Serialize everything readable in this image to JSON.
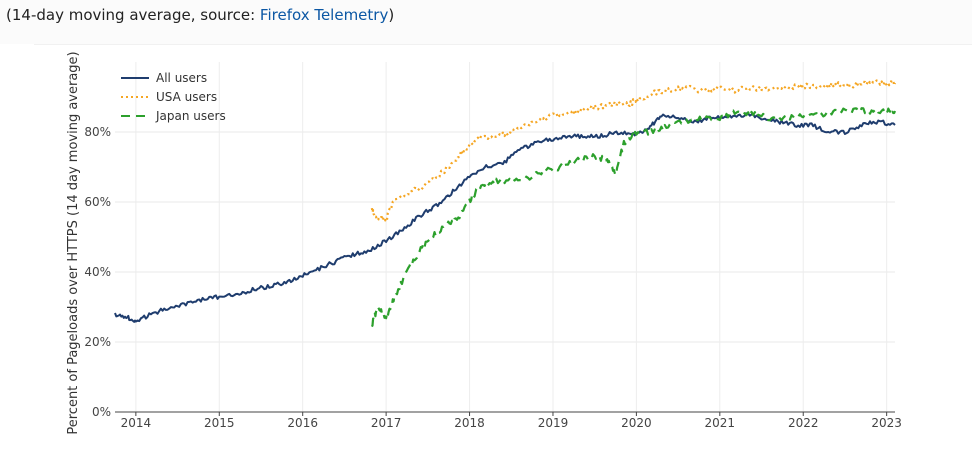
{
  "caption": {
    "prefix": "(14-day moving average, source: ",
    "link_text": "Firefox Telemetry",
    "suffix": ")"
  },
  "chart_data": {
    "type": "line",
    "title": "",
    "xlabel": "",
    "ylabel": "Percent of Pageloads over HTTPS (14 day moving average)",
    "xlim": [
      2013.75,
      2023.1
    ],
    "ylim": [
      0,
      100
    ],
    "x_ticks": [
      2014,
      2015,
      2016,
      2017,
      2018,
      2019,
      2020,
      2021,
      2022,
      2023
    ],
    "x_tick_labels": [
      "2014",
      "2015",
      "2016",
      "2017",
      "2018",
      "2019",
      "2020",
      "2021",
      "2022",
      "2023"
    ],
    "y_ticks": [
      0,
      20,
      40,
      60,
      80
    ],
    "y_tick_labels": [
      "0%",
      "20%",
      "40%",
      "60%",
      "80%"
    ],
    "legend_position": "top-left",
    "series": [
      {
        "name": "All users",
        "color": "#1f3d6e",
        "style": "solid",
        "x": [
          2013.75,
          2013.9,
          2014.0,
          2014.2,
          2014.4,
          2014.6,
          2014.8,
          2015.0,
          2015.2,
          2015.4,
          2015.6,
          2015.8,
          2016.0,
          2016.2,
          2016.4,
          2016.6,
          2016.8,
          2017.0,
          2017.2,
          2017.4,
          2017.6,
          2017.8,
          2018.0,
          2018.2,
          2018.4,
          2018.6,
          2018.8,
          2019.0,
          2019.2,
          2019.4,
          2019.6,
          2019.8,
          2020.0,
          2020.15,
          2020.3,
          2020.5,
          2020.7,
          2020.9,
          2021.1,
          2021.3,
          2021.5,
          2021.7,
          2021.9,
          2022.1,
          2022.3,
          2022.5,
          2022.7,
          2022.9,
          2023.1
        ],
        "y": [
          28,
          27,
          26,
          28,
          30,
          31,
          32,
          33,
          33.5,
          35,
          36,
          37,
          39,
          41,
          43,
          45,
          46,
          49,
          52,
          56,
          59,
          63,
          67,
          70,
          71,
          75,
          77,
          78,
          79,
          78.5,
          79,
          80,
          79.5,
          81,
          85,
          84,
          83,
          84,
          84.5,
          85,
          84,
          83,
          82,
          82,
          80,
          80,
          82,
          83,
          82
        ]
      },
      {
        "name": "USA users",
        "color": "#f5a623",
        "style": "dotted",
        "x": [
          2016.83,
          2016.9,
          2017.0,
          2017.1,
          2017.3,
          2017.5,
          2017.7,
          2017.9,
          2018.1,
          2018.3,
          2018.5,
          2018.7,
          2018.9,
          2019.1,
          2019.3,
          2019.5,
          2019.7,
          2019.9,
          2020.0,
          2020.2,
          2020.4,
          2020.6,
          2020.8,
          2021.0,
          2021.2,
          2021.4,
          2021.6,
          2021.8,
          2022.0,
          2022.2,
          2022.4,
          2022.6,
          2022.8,
          2023.0,
          2023.1
        ],
        "y": [
          58,
          55,
          55,
          61,
          63,
          65,
          69,
          74,
          78,
          79,
          80,
          82,
          84,
          85,
          86,
          87,
          88,
          88,
          89,
          91,
          92,
          92.5,
          92,
          92.5,
          92,
          92.5,
          92,
          93,
          93,
          93,
          93.5,
          93.5,
          94,
          94,
          94
        ]
      },
      {
        "name": "Japan users",
        "color": "#2ca02c",
        "style": "dashed",
        "x": [
          2016.83,
          2016.9,
          2017.0,
          2017.1,
          2017.25,
          2017.4,
          2017.55,
          2017.7,
          2017.85,
          2018.0,
          2018.1,
          2018.3,
          2018.5,
          2018.7,
          2018.9,
          2019.1,
          2019.3,
          2019.5,
          2019.65,
          2019.75,
          2019.85,
          2020.0,
          2020.2,
          2020.4,
          2020.6,
          2020.8,
          2021.0,
          2021.2,
          2021.4,
          2021.6,
          2021.8,
          2022.0,
          2022.2,
          2022.4,
          2022.6,
          2022.8,
          2023.0,
          2023.1
        ],
        "y": [
          25,
          30,
          27,
          33,
          40,
          46,
          50,
          53,
          55,
          60,
          64,
          66,
          66,
          67,
          69,
          70,
          72,
          73,
          72,
          68,
          77,
          80,
          80,
          82,
          83,
          84,
          84,
          86,
          85,
          84,
          84,
          85,
          85,
          86,
          86,
          86,
          86,
          86
        ]
      }
    ]
  }
}
